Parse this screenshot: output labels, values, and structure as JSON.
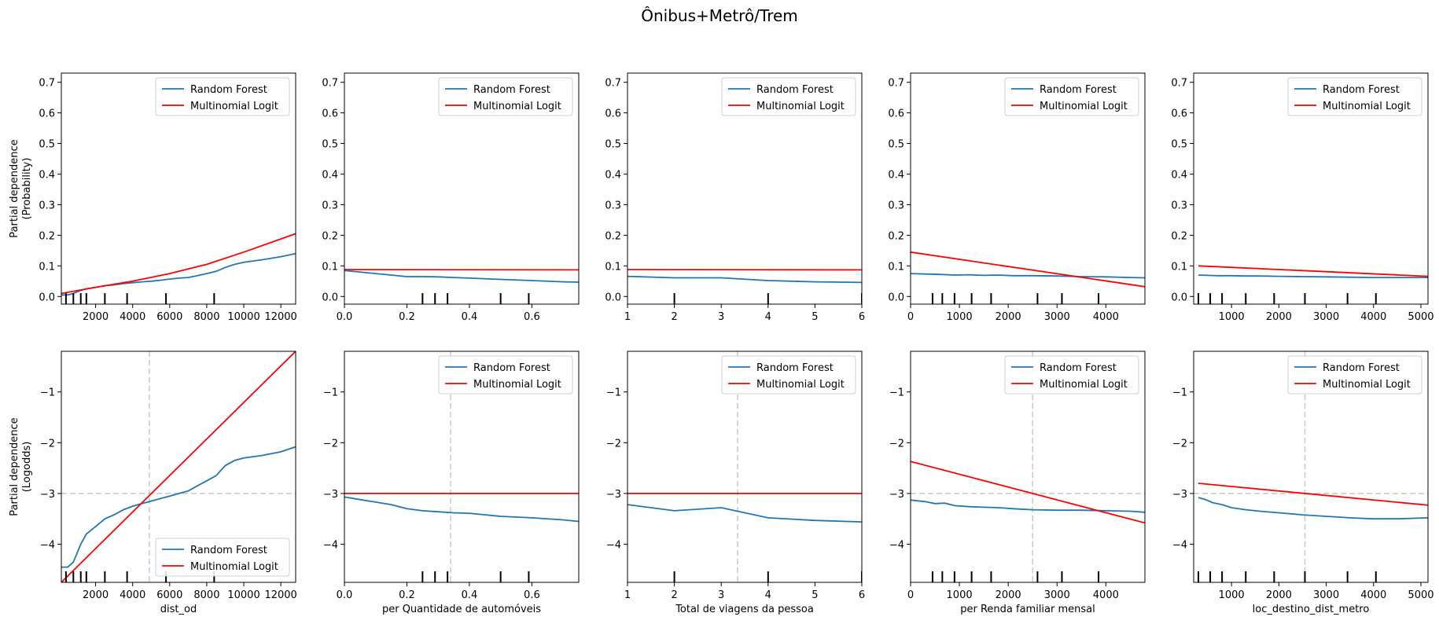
{
  "title": "Ônibus+Metrô/Trem",
  "chart_data": [
    {
      "type": "line",
      "row": 0,
      "col": 0,
      "xlabel": "",
      "ylabel": [
        "Partial dependence",
        "(Probability)"
      ],
      "xlim": [
        150,
        12800
      ],
      "ylim": [
        -0.025,
        0.73
      ],
      "xticks": [
        2000,
        4000,
        6000,
        8000,
        10000,
        12000
      ],
      "yticks": [
        0.0,
        0.1,
        0.2,
        0.3,
        0.4,
        0.5,
        0.6,
        0.7
      ],
      "ytick_labels": [
        "0.0",
        "0.1",
        "0.2",
        "0.3",
        "0.4",
        "0.5",
        "0.6",
        "0.7"
      ],
      "legend": "top-right",
      "deciles": [
        400,
        800,
        1200,
        1500,
        2500,
        3700,
        5800,
        8400
      ],
      "series": [
        {
          "name": "Random Forest",
          "color": "#1f77b4",
          "x": [
            150,
            500,
            800,
            1200,
            1500,
            2000,
            2500,
            3000,
            3500,
            4000,
            4500,
            5000,
            5500,
            6000,
            6500,
            7000,
            7500,
            8000,
            8500,
            9000,
            9500,
            10000,
            11000,
            12000,
            12800
          ],
          "y": [
            0.005,
            0.005,
            0.01,
            0.02,
            0.025,
            0.03,
            0.035,
            0.038,
            0.042,
            0.045,
            0.048,
            0.05,
            0.053,
            0.057,
            0.06,
            0.062,
            0.068,
            0.075,
            0.082,
            0.095,
            0.105,
            0.112,
            0.12,
            0.13,
            0.14
          ]
        },
        {
          "name": "Multinomial Logit",
          "color": "#ff0000",
          "x": [
            150,
            2000,
            4000,
            6000,
            8000,
            10000,
            12800
          ],
          "y": [
            0.01,
            0.03,
            0.05,
            0.075,
            0.105,
            0.145,
            0.205
          ]
        }
      ]
    },
    {
      "type": "line",
      "row": 0,
      "col": 1,
      "xlabel": "",
      "ylabel": "",
      "xlim": [
        0,
        0.75
      ],
      "ylim": [
        -0.025,
        0.73
      ],
      "xticks": [
        0.0,
        0.2,
        0.4,
        0.6
      ],
      "xtick_labels": [
        "0.0",
        "0.2",
        "0.4",
        "0.6"
      ],
      "yticks": [
        0.0,
        0.1,
        0.2,
        0.3,
        0.4,
        0.5,
        0.6,
        0.7
      ],
      "ytick_labels": [
        "0.0",
        "0.1",
        "0.2",
        "0.3",
        "0.4",
        "0.5",
        "0.6",
        "0.7"
      ],
      "legend": "top-right",
      "deciles": [
        0.25,
        0.29,
        0.33,
        0.5,
        0.59
      ],
      "series": [
        {
          "name": "Random Forest",
          "color": "#1f77b4",
          "x": [
            0,
            0.1,
            0.15,
            0.2,
            0.25,
            0.3,
            0.35,
            0.4,
            0.5,
            0.6,
            0.7,
            0.75
          ],
          "y": [
            0.085,
            0.075,
            0.07,
            0.065,
            0.065,
            0.064,
            0.062,
            0.06,
            0.056,
            0.052,
            0.048,
            0.047
          ]
        },
        {
          "name": "Multinomial Logit",
          "color": "#ff0000",
          "x": [
            0,
            0.75
          ],
          "y": [
            0.088,
            0.087
          ]
        }
      ]
    },
    {
      "type": "line",
      "row": 0,
      "col": 2,
      "xlabel": "",
      "ylabel": "",
      "xlim": [
        1,
        6
      ],
      "ylim": [
        -0.025,
        0.73
      ],
      "xticks": [
        1,
        2,
        3,
        4,
        5,
        6
      ],
      "yticks": [
        0.0,
        0.1,
        0.2,
        0.3,
        0.4,
        0.5,
        0.6,
        0.7
      ],
      "ytick_labels": [
        "0.0",
        "0.1",
        "0.2",
        "0.3",
        "0.4",
        "0.5",
        "0.6",
        "0.7"
      ],
      "legend": "top-right",
      "deciles": [
        2,
        4,
        6
      ],
      "series": [
        {
          "name": "Random Forest",
          "color": "#1f77b4",
          "x": [
            1,
            2,
            3,
            4,
            5,
            6
          ],
          "y": [
            0.066,
            0.061,
            0.061,
            0.052,
            0.048,
            0.046
          ]
        },
        {
          "name": "Multinomial Logit",
          "color": "#ff0000",
          "x": [
            1,
            6
          ],
          "y": [
            0.088,
            0.087
          ]
        }
      ]
    },
    {
      "type": "line",
      "row": 0,
      "col": 3,
      "xlabel": "",
      "ylabel": "",
      "xlim": [
        0,
        4800
      ],
      "ylim": [
        -0.025,
        0.73
      ],
      "xticks": [
        0,
        1000,
        2000,
        3000,
        4000
      ],
      "yticks": [
        0.0,
        0.1,
        0.2,
        0.3,
        0.4,
        0.5,
        0.6,
        0.7
      ],
      "ytick_labels": [
        "0.0",
        "0.1",
        "0.2",
        "0.3",
        "0.4",
        "0.5",
        "0.6",
        "0.7"
      ],
      "legend": "top-right",
      "deciles": [
        450,
        650,
        900,
        1250,
        1650,
        2600,
        3100,
        3850
      ],
      "series": [
        {
          "name": "Random Forest",
          "color": "#1f77b4",
          "x": [
            0,
            400,
            600,
            900,
            1200,
            1500,
            1800,
            2100,
            2500,
            3000,
            3500,
            4000,
            4500,
            4800
          ],
          "y": [
            0.075,
            0.073,
            0.072,
            0.07,
            0.071,
            0.069,
            0.07,
            0.068,
            0.068,
            0.067,
            0.065,
            0.064,
            0.062,
            0.061
          ]
        },
        {
          "name": "Multinomial Logit",
          "color": "#ff0000",
          "x": [
            0,
            4800
          ],
          "y": [
            0.145,
            0.032
          ]
        }
      ]
    },
    {
      "type": "line",
      "row": 0,
      "col": 4,
      "xlabel": "",
      "ylabel": "",
      "xlim": [
        200,
        5150
      ],
      "ylim": [
        -0.025,
        0.73
      ],
      "xticks": [
        1000,
        2000,
        3000,
        4000,
        5000
      ],
      "yticks": [
        0.0,
        0.1,
        0.2,
        0.3,
        0.4,
        0.5,
        0.6,
        0.7
      ],
      "ytick_labels": [
        "0.0",
        "0.1",
        "0.2",
        "0.3",
        "0.4",
        "0.5",
        "0.6",
        "0.7"
      ],
      "legend": "top-right",
      "deciles": [
        300,
        550,
        800,
        1300,
        1900,
        2550,
        3450,
        4050
      ],
      "series": [
        {
          "name": "Random Forest",
          "color": "#1f77b4",
          "x": [
            300,
            500,
            700,
            1000,
            1300,
            1600,
            2000,
            2500,
            3000,
            3500,
            4000,
            4500,
            5150
          ],
          "y": [
            0.07,
            0.069,
            0.068,
            0.068,
            0.067,
            0.067,
            0.066,
            0.065,
            0.064,
            0.063,
            0.062,
            0.062,
            0.062
          ]
        },
        {
          "name": "Multinomial Logit",
          "color": "#ff0000",
          "x": [
            300,
            5150
          ],
          "y": [
            0.1,
            0.066
          ]
        }
      ]
    },
    {
      "type": "line",
      "row": 1,
      "col": 0,
      "xlabel": "dist_od",
      "ylabel": [
        "Partial dependence",
        "(Logodds)"
      ],
      "xlim": [
        150,
        12800
      ],
      "ylim": [
        -4.75,
        -0.2
      ],
      "xticks": [
        2000,
        4000,
        6000,
        8000,
        10000,
        12000
      ],
      "yticks": [
        -4,
        -3,
        -2,
        -1
      ],
      "ytick_labels": [
        "−4",
        "−3",
        "−2",
        "−1"
      ],
      "legend": "bottom-right",
      "hline": -3,
      "vline": 4900,
      "deciles": [
        400,
        800,
        1200,
        1500,
        2500,
        3700,
        5800,
        8400
      ],
      "series": [
        {
          "name": "Random Forest",
          "color": "#1f77b4",
          "x": [
            150,
            500,
            800,
            1200,
            1500,
            2000,
            2500,
            3000,
            3500,
            4000,
            4500,
            5000,
            5500,
            6000,
            6500,
            7000,
            7500,
            8000,
            8500,
            9000,
            9500,
            10000,
            11000,
            12000,
            12800
          ],
          "y": [
            -4.45,
            -4.45,
            -4.35,
            -4.0,
            -3.8,
            -3.65,
            -3.5,
            -3.42,
            -3.32,
            -3.25,
            -3.2,
            -3.15,
            -3.1,
            -3.05,
            -3.0,
            -2.95,
            -2.85,
            -2.75,
            -2.65,
            -2.45,
            -2.35,
            -2.3,
            -2.25,
            -2.18,
            -2.08
          ]
        },
        {
          "name": "Multinomial Logit",
          "color": "#ff0000",
          "x": [
            150,
            12800
          ],
          "y": [
            -4.75,
            -0.2
          ]
        }
      ]
    },
    {
      "type": "line",
      "row": 1,
      "col": 1,
      "xlabel": "per Quantidade de automóveis",
      "ylabel": "",
      "xlim": [
        0,
        0.75
      ],
      "ylim": [
        -4.75,
        -0.2
      ],
      "xticks": [
        0.0,
        0.2,
        0.4,
        0.6
      ],
      "xtick_labels": [
        "0.0",
        "0.2",
        "0.4",
        "0.6"
      ],
      "yticks": [
        -4,
        -3,
        -2,
        -1
      ],
      "ytick_labels": [
        "−4",
        "−3",
        "−2",
        "−1"
      ],
      "legend": "top-right",
      "hline": -3,
      "vline": 0.34,
      "deciles": [
        0.25,
        0.29,
        0.33,
        0.5,
        0.59
      ],
      "series": [
        {
          "name": "Random Forest",
          "color": "#1f77b4",
          "x": [
            0,
            0.05,
            0.1,
            0.15,
            0.2,
            0.25,
            0.3,
            0.35,
            0.4,
            0.5,
            0.6,
            0.7,
            0.75
          ],
          "y": [
            -3.07,
            -3.12,
            -3.17,
            -3.22,
            -3.3,
            -3.34,
            -3.36,
            -3.38,
            -3.39,
            -3.45,
            -3.48,
            -3.52,
            -3.55
          ]
        },
        {
          "name": "Multinomial Logit",
          "color": "#ff0000",
          "x": [
            0,
            0.75
          ],
          "y": [
            -3.0,
            -3.0
          ]
        }
      ]
    },
    {
      "type": "line",
      "row": 1,
      "col": 2,
      "xlabel": "Total de viagens da pessoa",
      "ylabel": "",
      "xlim": [
        1,
        6
      ],
      "ylim": [
        -4.75,
        -0.2
      ],
      "xticks": [
        1,
        2,
        3,
        4,
        5,
        6
      ],
      "yticks": [
        -4,
        -3,
        -2,
        -1
      ],
      "ytick_labels": [
        "−4",
        "−3",
        "−2",
        "−1"
      ],
      "legend": "top-right",
      "hline": -3,
      "vline": 3.35,
      "deciles": [
        2,
        4,
        6
      ],
      "series": [
        {
          "name": "Random Forest",
          "color": "#1f77b4",
          "x": [
            1,
            2,
            3,
            4,
            5,
            6
          ],
          "y": [
            -3.22,
            -3.34,
            -3.28,
            -3.48,
            -3.53,
            -3.56
          ]
        },
        {
          "name": "Multinomial Logit",
          "color": "#ff0000",
          "x": [
            1,
            6
          ],
          "y": [
            -3.0,
            -3.0
          ]
        }
      ]
    },
    {
      "type": "line",
      "row": 1,
      "col": 3,
      "xlabel": "per Renda familiar mensal",
      "ylabel": "",
      "xlim": [
        0,
        4800
      ],
      "ylim": [
        -4.75,
        -0.2
      ],
      "xticks": [
        0,
        1000,
        2000,
        3000,
        4000
      ],
      "yticks": [
        -4,
        -3,
        -2,
        -1
      ],
      "ytick_labels": [
        "−4",
        "−3",
        "−2",
        "−1"
      ],
      "legend": "top-right",
      "hline": -3,
      "vline": 2500,
      "deciles": [
        450,
        650,
        900,
        1250,
        1650,
        2600,
        3100,
        3850
      ],
      "series": [
        {
          "name": "Random Forest",
          "color": "#1f77b4",
          "x": [
            0,
            300,
            500,
            700,
            900,
            1200,
            1500,
            1800,
            2100,
            2500,
            3000,
            3500,
            4000,
            4500,
            4800
          ],
          "y": [
            -3.13,
            -3.16,
            -3.2,
            -3.19,
            -3.24,
            -3.26,
            -3.27,
            -3.28,
            -3.3,
            -3.32,
            -3.33,
            -3.33,
            -3.34,
            -3.35,
            -3.37
          ]
        },
        {
          "name": "Multinomial Logit",
          "color": "#ff0000",
          "x": [
            0,
            4800
          ],
          "y": [
            -2.37,
            -3.58
          ]
        }
      ]
    },
    {
      "type": "line",
      "row": 1,
      "col": 4,
      "xlabel": "loc_destino_dist_metro",
      "ylabel": "",
      "xlim": [
        200,
        5150
      ],
      "ylim": [
        -4.75,
        -0.2
      ],
      "xticks": [
        1000,
        2000,
        3000,
        4000,
        5000
      ],
      "yticks": [
        -4,
        -3,
        -2,
        -1
      ],
      "ytick_labels": [
        "−4",
        "−3",
        "−2",
        "−1"
      ],
      "legend": "top-right",
      "hline": -3,
      "vline": 2550,
      "deciles": [
        300,
        550,
        800,
        1300,
        1900,
        2550,
        3450,
        4050
      ],
      "series": [
        {
          "name": "Random Forest",
          "color": "#1f77b4",
          "x": [
            300,
            450,
            600,
            800,
            1000,
            1300,
            1600,
            2000,
            2500,
            3000,
            3500,
            4000,
            4500,
            5150
          ],
          "y": [
            -3.08,
            -3.12,
            -3.18,
            -3.22,
            -3.28,
            -3.32,
            -3.35,
            -3.38,
            -3.42,
            -3.45,
            -3.48,
            -3.5,
            -3.5,
            -3.48
          ]
        },
        {
          "name": "Multinomial Logit",
          "color": "#ff0000",
          "x": [
            300,
            5150
          ],
          "y": [
            -2.8,
            -3.23
          ]
        }
      ]
    }
  ]
}
